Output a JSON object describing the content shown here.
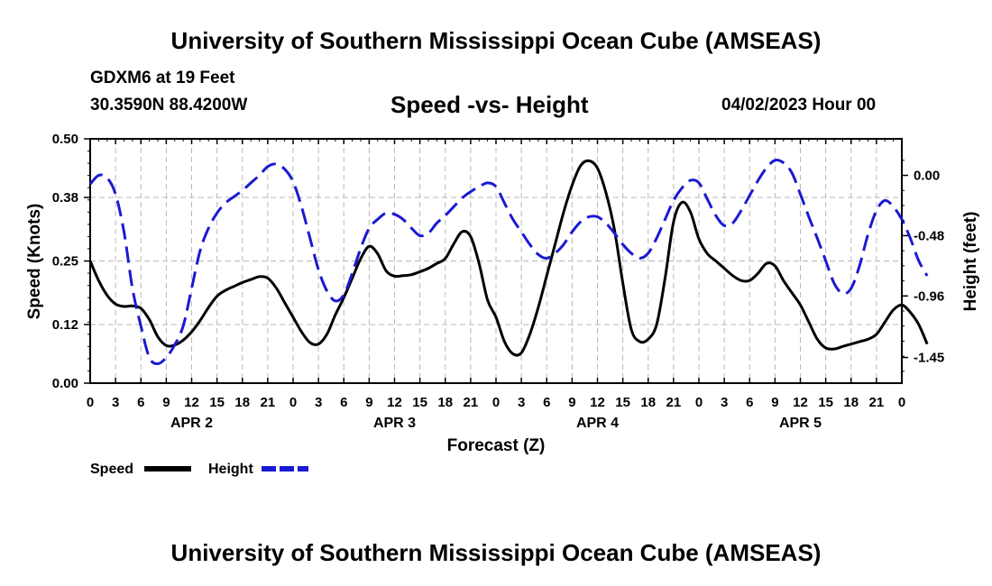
{
  "header": {
    "title": "University of Southern Mississippi Ocean Cube (AMSEAS)",
    "station": "GDXM6 at 19 Feet",
    "coords": "30.3590N  88.4200W",
    "subtitle": "Speed -vs- Height",
    "datetime": "04/02/2023 Hour 00"
  },
  "footer": {
    "title": "University of Southern Mississippi Ocean Cube (AMSEAS)"
  },
  "chart_data": {
    "type": "line",
    "title": "Speed -vs- Height",
    "xlabel": "Forecast (Z)",
    "ylabel": "Speed (Knots)",
    "y2label": "Height (feet)",
    "x_hours_range": [
      0,
      96
    ],
    "xticks_hours": [
      0,
      3,
      6,
      9,
      12,
      15,
      18,
      21,
      24,
      27,
      30,
      33,
      36,
      39,
      42,
      45,
      48,
      51,
      54,
      57,
      60,
      63,
      66,
      69,
      72,
      75,
      78,
      81,
      84,
      87,
      90,
      93,
      96
    ],
    "xtick_labels": [
      "0",
      "3",
      "6",
      "9",
      "12",
      "15",
      "18",
      "21",
      "0",
      "3",
      "6",
      "9",
      "12",
      "15",
      "18",
      "21",
      "0",
      "3",
      "6",
      "9",
      "12",
      "15",
      "18",
      "21",
      "0",
      "3",
      "6",
      "9",
      "12",
      "15",
      "18",
      "21",
      "0"
    ],
    "day_labels": [
      {
        "label": "APR 2",
        "hour": 12
      },
      {
        "label": "APR 3",
        "hour": 36
      },
      {
        "label": "APR 4",
        "hour": 60
      },
      {
        "label": "APR 5",
        "hour": 84
      }
    ],
    "ylim": [
      0,
      0.5
    ],
    "yticks": [
      0.0,
      0.12,
      0.25,
      0.38,
      0.5
    ],
    "ytick_labels": [
      "0.00",
      "0.12",
      "0.25",
      "0.38",
      "0.50"
    ],
    "y2lim": [
      -1.6545,
      0.2909
    ],
    "y2ticks": [
      0.0,
      -0.48,
      -0.96,
      -1.45
    ],
    "y2tick_labels": [
      "0.00",
      "-0.48",
      "-0.96",
      "-1.45"
    ],
    "grid": true,
    "series": [
      {
        "name": "Speed",
        "axis": "left",
        "color": "#000000",
        "dash": "solid",
        "points": [
          [
            0,
            0.25
          ],
          [
            1,
            0.21
          ],
          [
            2,
            0.18
          ],
          [
            3,
            0.162
          ],
          [
            4,
            0.157
          ],
          [
            5,
            0.158
          ],
          [
            6,
            0.153
          ],
          [
            7,
            0.13
          ],
          [
            8,
            0.095
          ],
          [
            9,
            0.077
          ],
          [
            10,
            0.078
          ],
          [
            11,
            0.088
          ],
          [
            12,
            0.105
          ],
          [
            13,
            0.128
          ],
          [
            14,
            0.155
          ],
          [
            15,
            0.178
          ],
          [
            16,
            0.19
          ],
          [
            17,
            0.198
          ],
          [
            18,
            0.206
          ],
          [
            19,
            0.212
          ],
          [
            20,
            0.218
          ],
          [
            21,
            0.215
          ],
          [
            22,
            0.195
          ],
          [
            23,
            0.165
          ],
          [
            24,
            0.135
          ],
          [
            25,
            0.105
          ],
          [
            26,
            0.083
          ],
          [
            27,
            0.08
          ],
          [
            28,
            0.1
          ],
          [
            29,
            0.14
          ],
          [
            30,
            0.175
          ],
          [
            31,
            0.215
          ],
          [
            32,
            0.255
          ],
          [
            33,
            0.28
          ],
          [
            34,
            0.265
          ],
          [
            35,
            0.23
          ],
          [
            36,
            0.219
          ],
          [
            37,
            0.22
          ],
          [
            38,
            0.222
          ],
          [
            39,
            0.228
          ],
          [
            40,
            0.235
          ],
          [
            41,
            0.245
          ],
          [
            42,
            0.255
          ],
          [
            43,
            0.285
          ],
          [
            44,
            0.31
          ],
          [
            45,
            0.3
          ],
          [
            46,
            0.245
          ],
          [
            47,
            0.17
          ],
          [
            48,
            0.135
          ],
          [
            49,
            0.085
          ],
          [
            50,
            0.06
          ],
          [
            51,
            0.062
          ],
          [
            52,
            0.1
          ],
          [
            53,
            0.155
          ],
          [
            54,
            0.22
          ],
          [
            55,
            0.285
          ],
          [
            56,
            0.35
          ],
          [
            57,
            0.405
          ],
          [
            58,
            0.445
          ],
          [
            59,
            0.455
          ],
          [
            60,
            0.44
          ],
          [
            61,
            0.39
          ],
          [
            62,
            0.315
          ],
          [
            63,
            0.205
          ],
          [
            64,
            0.11
          ],
          [
            65,
            0.085
          ],
          [
            66,
            0.09
          ],
          [
            67,
            0.12
          ],
          [
            68,
            0.215
          ],
          [
            69,
            0.33
          ],
          [
            70,
            0.37
          ],
          [
            71,
            0.35
          ],
          [
            72,
            0.295
          ],
          [
            73,
            0.265
          ],
          [
            74,
            0.25
          ],
          [
            75,
            0.235
          ],
          [
            76,
            0.22
          ],
          [
            77,
            0.21
          ],
          [
            78,
            0.21
          ],
          [
            79,
            0.225
          ],
          [
            80,
            0.245
          ],
          [
            81,
            0.24
          ],
          [
            82,
            0.21
          ],
          [
            83,
            0.185
          ],
          [
            84,
            0.16
          ],
          [
            85,
            0.125
          ],
          [
            86,
            0.09
          ],
          [
            87,
            0.072
          ],
          [
            88,
            0.07
          ],
          [
            89,
            0.075
          ],
          [
            90,
            0.08
          ],
          [
            91,
            0.085
          ],
          [
            92,
            0.09
          ],
          [
            93,
            0.1
          ],
          [
            94,
            0.125
          ],
          [
            95,
            0.15
          ],
          [
            96,
            0.16
          ],
          [
            97,
            0.145
          ],
          [
            98,
            0.12
          ],
          [
            99,
            0.08
          ]
        ]
      },
      {
        "name": "Height",
        "axis": "right",
        "color": "#1a1ad2",
        "dash": "dashed",
        "points": [
          [
            0,
            -0.07
          ],
          [
            1,
            0.0
          ],
          [
            2,
            -0.02
          ],
          [
            3,
            -0.15
          ],
          [
            4,
            -0.45
          ],
          [
            5,
            -0.9
          ],
          [
            6,
            -1.2
          ],
          [
            7,
            -1.45
          ],
          [
            8,
            -1.5
          ],
          [
            9,
            -1.45
          ],
          [
            10,
            -1.35
          ],
          [
            11,
            -1.2
          ],
          [
            12,
            -0.9
          ],
          [
            13,
            -0.6
          ],
          [
            14,
            -0.42
          ],
          [
            15,
            -0.3
          ],
          [
            16,
            -0.22
          ],
          [
            17,
            -0.17
          ],
          [
            18,
            -0.12
          ],
          [
            19,
            -0.06
          ],
          [
            20,
            0.0
          ],
          [
            21,
            0.07
          ],
          [
            22,
            0.09
          ],
          [
            23,
            0.05
          ],
          [
            24,
            -0.05
          ],
          [
            25,
            -0.25
          ],
          [
            26,
            -0.5
          ],
          [
            27,
            -0.75
          ],
          [
            28,
            -0.92
          ],
          [
            29,
            -1.0
          ],
          [
            30,
            -0.95
          ],
          [
            31,
            -0.78
          ],
          [
            32,
            -0.58
          ],
          [
            33,
            -0.42
          ],
          [
            34,
            -0.35
          ],
          [
            35,
            -0.3
          ],
          [
            36,
            -0.31
          ],
          [
            37,
            -0.35
          ],
          [
            38,
            -0.42
          ],
          [
            39,
            -0.48
          ],
          [
            40,
            -0.46
          ],
          [
            41,
            -0.38
          ],
          [
            42,
            -0.32
          ],
          [
            43,
            -0.25
          ],
          [
            44,
            -0.18
          ],
          [
            45,
            -0.13
          ],
          [
            46,
            -0.09
          ],
          [
            47,
            -0.06
          ],
          [
            48,
            -0.09
          ],
          [
            49,
            -0.22
          ],
          [
            50,
            -0.35
          ],
          [
            51,
            -0.45
          ],
          [
            52,
            -0.55
          ],
          [
            53,
            -0.63
          ],
          [
            54,
            -0.66
          ],
          [
            55,
            -0.62
          ],
          [
            56,
            -0.55
          ],
          [
            57,
            -0.45
          ],
          [
            58,
            -0.37
          ],
          [
            59,
            -0.33
          ],
          [
            60,
            -0.33
          ],
          [
            61,
            -0.38
          ],
          [
            62,
            -0.46
          ],
          [
            63,
            -0.55
          ],
          [
            64,
            -0.62
          ],
          [
            65,
            -0.66
          ],
          [
            66,
            -0.62
          ],
          [
            67,
            -0.5
          ],
          [
            68,
            -0.35
          ],
          [
            69,
            -0.2
          ],
          [
            70,
            -0.1
          ],
          [
            71,
            -0.04
          ],
          [
            72,
            -0.06
          ],
          [
            73,
            -0.19
          ],
          [
            74,
            -0.32
          ],
          [
            75,
            -0.4
          ],
          [
            76,
            -0.38
          ],
          [
            77,
            -0.28
          ],
          [
            78,
            -0.16
          ],
          [
            79,
            -0.04
          ],
          [
            80,
            0.06
          ],
          [
            81,
            0.12
          ],
          [
            82,
            0.1
          ],
          [
            83,
            0.02
          ],
          [
            84,
            -0.15
          ],
          [
            85,
            -0.33
          ],
          [
            86,
            -0.5
          ],
          [
            87,
            -0.68
          ],
          [
            88,
            -0.86
          ],
          [
            89,
            -0.94
          ],
          [
            90,
            -0.9
          ],
          [
            91,
            -0.72
          ],
          [
            92,
            -0.47
          ],
          [
            93,
            -0.28
          ],
          [
            94,
            -0.2
          ],
          [
            95,
            -0.25
          ],
          [
            96,
            -0.35
          ],
          [
            97,
            -0.5
          ],
          [
            98,
            -0.68
          ],
          [
            99,
            -0.8
          ]
        ]
      }
    ],
    "legend": [
      {
        "label": "Speed",
        "color": "#000000",
        "dash": "solid"
      },
      {
        "label": "Height",
        "color": "#1a1ad2",
        "dash": "dashed"
      }
    ],
    "legend_position": "bottom-left"
  }
}
